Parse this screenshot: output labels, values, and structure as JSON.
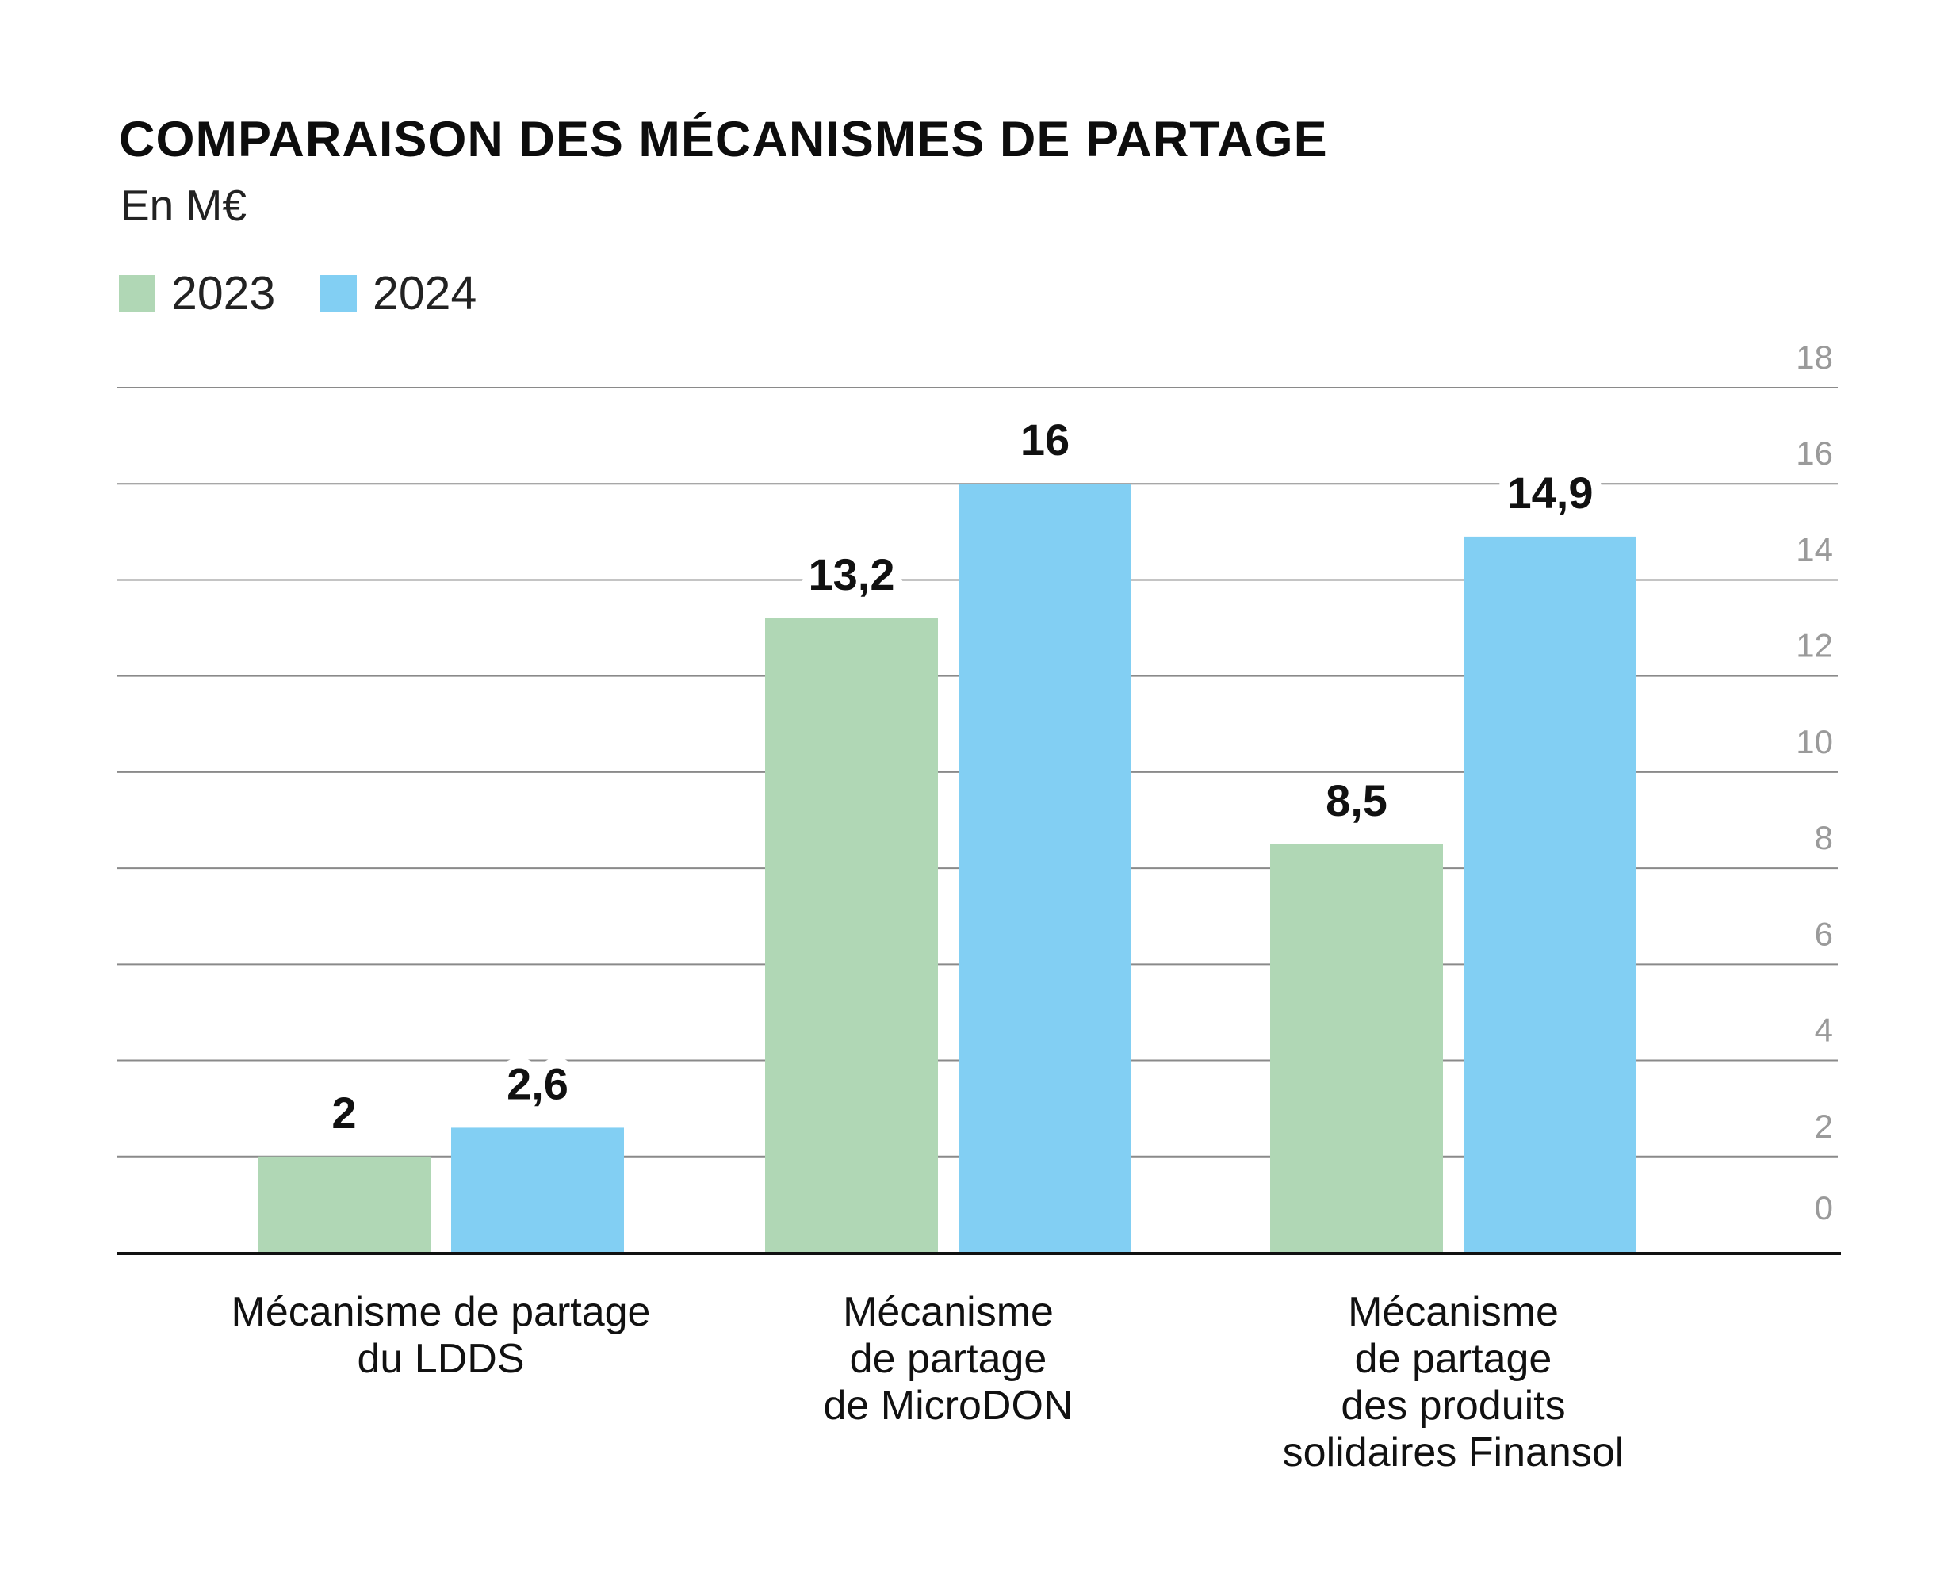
{
  "chart_data": {
    "type": "bar",
    "title": "COMPARAISON DES MÉCANISMES DE PARTAGE",
    "subtitle": "En M€",
    "categories": [
      "Mécanisme de partage\ndu LDDS",
      "Mécanisme\nde partage\nde MicroDON",
      "Mécanisme\nde partage\ndes produits\nsolidaires Finansol"
    ],
    "series": [
      {
        "name": "2023",
        "color": "#b0d7b5",
        "values": [
          2,
          13.2,
          8.5
        ],
        "labels": [
          "2",
          "13,2",
          "8,5"
        ]
      },
      {
        "name": "2024",
        "color": "#82cff3",
        "values": [
          2.6,
          16,
          14.9
        ],
        "labels": [
          "2,6",
          "16",
          "14,9"
        ]
      }
    ],
    "yticks": [
      "0",
      "2",
      "4",
      "6",
      "8",
      "10",
      "12",
      "14",
      "16",
      "18"
    ],
    "ylim": [
      0,
      18
    ],
    "yaxis_position": "right",
    "grid": true,
    "legend_position": "top-left"
  }
}
